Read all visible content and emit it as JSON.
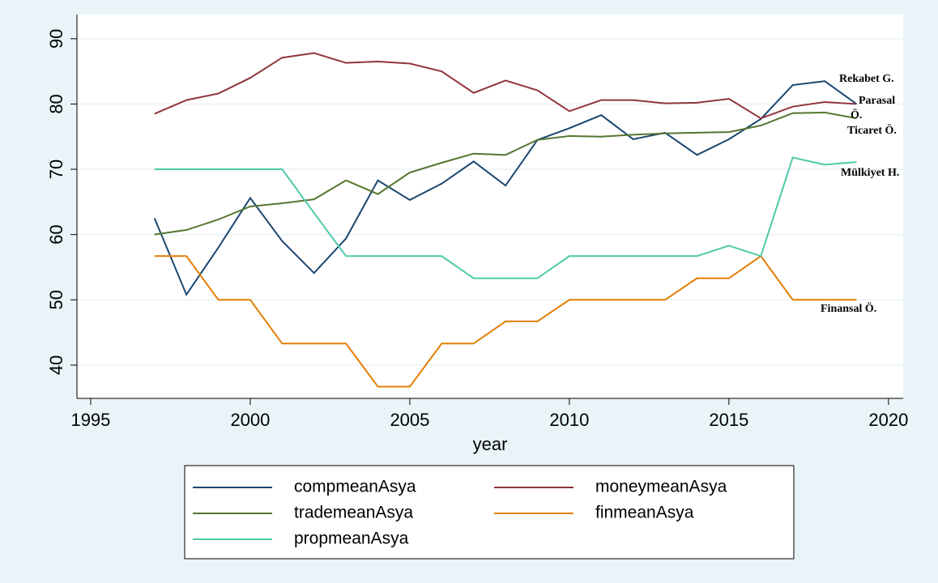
{
  "chart_data": {
    "type": "line",
    "x_label": "year",
    "x": [
      1997,
      1998,
      1999,
      2000,
      2001,
      2002,
      2003,
      2004,
      2005,
      2006,
      2007,
      2008,
      2009,
      2010,
      2011,
      2012,
      2013,
      2014,
      2015,
      2016,
      2017,
      2018,
      2019
    ],
    "series": [
      {
        "name": "compmeanAsya",
        "color": "#1a476f",
        "values": [
          62.5,
          50.8,
          58,
          65.6,
          59,
          54.1,
          59.4,
          68.3,
          65.3,
          67.8,
          71.2,
          67.5,
          74.5,
          76.3,
          78.3,
          74.6,
          75.6,
          72.2,
          74.6,
          77.7,
          82.9,
          83.5,
          80
        ]
      },
      {
        "name": "moneymeanAsya",
        "color": "#90353b",
        "values": [
          78.5,
          80.6,
          81.6,
          84,
          87.1,
          87.8,
          86.3,
          86.5,
          86.2,
          85,
          81.7,
          83.6,
          82.1,
          78.9,
          80.6,
          80.6,
          80.1,
          80.2,
          80.8,
          77.8,
          79.6,
          80.3,
          80
        ]
      },
      {
        "name": "trademeanAsya",
        "color": "#55752f",
        "values": [
          60,
          60.7,
          62.3,
          64.3,
          64.8,
          65.4,
          68.3,
          66.2,
          69.5,
          71,
          72.4,
          72.2,
          74.5,
          75.1,
          75,
          75.3,
          75.5,
          75.6,
          75.7,
          76.7,
          78.6,
          78.7,
          77.8
        ]
      },
      {
        "name": "finmeanAsya",
        "color": "#e37e00",
        "values": [
          56.7,
          56.7,
          50,
          50,
          43.3,
          43.3,
          43.3,
          36.7,
          36.7,
          43.3,
          43.3,
          46.7,
          46.7,
          50,
          50,
          50,
          50,
          53.3,
          53.3,
          56.7,
          50,
          50,
          50
        ]
      },
      {
        "name": "propmeanAsya",
        "color": "#4fc9a9",
        "values": [
          70,
          70,
          70,
          70,
          70,
          63.3,
          56.7,
          56.7,
          56.7,
          56.7,
          53.3,
          53.3,
          53.3,
          56.7,
          56.7,
          56.7,
          56.7,
          56.7,
          58.3,
          56.7,
          71.8,
          70.7,
          71.1
        ]
      }
    ],
    "annotations": [
      "Rekabet G.",
      "Parasal",
      "Ö.",
      "Ticaret Ö.",
      "Mülkiyet H.",
      "Finansal Ö."
    ],
    "xlim": [
      1994.57,
      2020.46
    ],
    "ylim": [
      34.9,
      93.7
    ],
    "xticks": [
      1995,
      2000,
      2005,
      2010,
      2015,
      2020
    ],
    "yticks": [
      40,
      50,
      60,
      70,
      80,
      90
    ],
    "grid": true
  }
}
